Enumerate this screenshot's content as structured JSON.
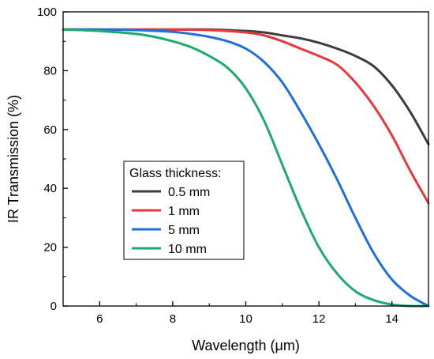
{
  "chart_data": {
    "type": "line",
    "title": "",
    "xlabel": "Wavelength (μm)",
    "ylabel": "IR Transmission (%)",
    "xlim": [
      5,
      15
    ],
    "ylim": [
      0,
      100
    ],
    "x_ticks": [
      6,
      8,
      10,
      12,
      14
    ],
    "y_ticks": [
      0,
      20,
      40,
      60,
      80,
      100
    ],
    "grid": false,
    "legend": {
      "title": "Glass thickness:",
      "placement": "center-left"
    },
    "series": [
      {
        "name": "0.5 mm",
        "color": "#3d3d3d",
        "x": [
          5,
          6,
          7,
          8,
          9,
          10,
          10.5,
          11,
          11.5,
          12,
          12.5,
          13,
          13.5,
          14,
          14.5,
          15
        ],
        "y": [
          94,
          94,
          94,
          94,
          94,
          93.5,
          93,
          92,
          91,
          89.5,
          87.5,
          85,
          81.5,
          75,
          66,
          55
        ]
      },
      {
        "name": "1 mm",
        "color": "#e8373b",
        "x": [
          5,
          6,
          7,
          8,
          9,
          10,
          10.5,
          11,
          11.5,
          12,
          12.5,
          13,
          13.5,
          14,
          14.5,
          15
        ],
        "y": [
          94,
          94,
          94,
          94,
          93.8,
          93,
          92,
          90,
          87.5,
          85,
          82,
          76,
          68,
          58,
          46,
          35
        ]
      },
      {
        "name": "5 mm",
        "color": "#1f6fdb",
        "x": [
          5,
          6,
          7,
          8,
          8.5,
          9,
          9.5,
          10,
          10.5,
          11,
          11.5,
          12,
          12.5,
          13,
          13.5,
          14,
          14.5,
          15
        ],
        "y": [
          94,
          94,
          93.8,
          93.2,
          92.5,
          91.5,
          90,
          87.5,
          83,
          76,
          66,
          55,
          43,
          30,
          18,
          9,
          3.5,
          0
        ]
      },
      {
        "name": "10 mm",
        "color": "#1cab6c",
        "x": [
          5,
          6,
          7,
          7.5,
          8,
          8.5,
          9,
          9.5,
          10,
          10.5,
          11,
          11.5,
          12,
          12.5,
          13,
          13.5,
          14,
          14.5,
          15
        ],
        "y": [
          94,
          93.5,
          92.5,
          91.5,
          90,
          88,
          85,
          81,
          74,
          63,
          48,
          33,
          20,
          11,
          5,
          2,
          0.5,
          0,
          0
        ]
      }
    ]
  }
}
